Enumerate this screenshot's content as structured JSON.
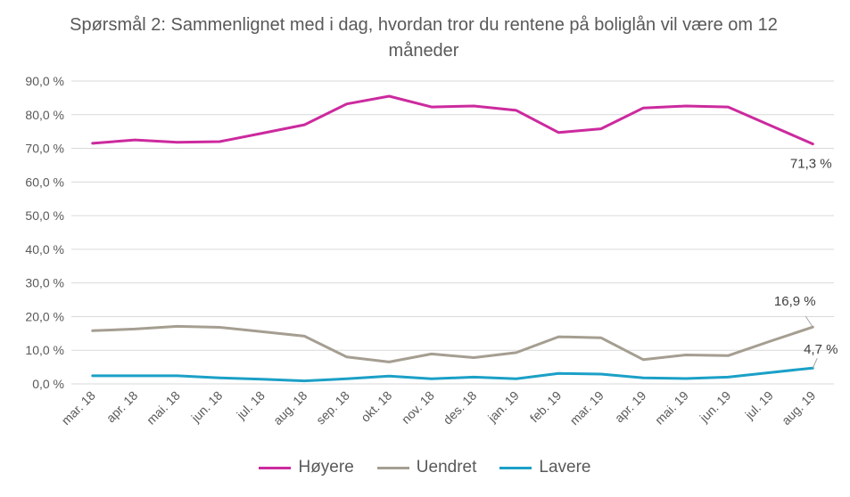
{
  "chart_data": {
    "type": "line",
    "title": "Spørsmål 2: Sammenlignet  med i dag, hvordan tror du rentene på boliglån vil være om 12 måneder",
    "xlabel": "",
    "ylabel": "",
    "ylim": [
      0,
      90
    ],
    "y_ticks": [
      "0,0 %",
      "10,0 %",
      "20,0 %",
      "30,0 %",
      "40,0 %",
      "50,0 %",
      "60,0 %",
      "70,0 %",
      "80,0 %",
      "90,0 %"
    ],
    "grid": true,
    "legend": "bottom",
    "categories": [
      "mar. 18",
      "apr. 18",
      "mai. 18",
      "jun. 18",
      "jul. 18",
      "aug. 18",
      "sep. 18",
      "okt. 18",
      "nov. 18",
      "des. 18",
      "jan. 19",
      "feb. 19",
      "mar. 19",
      "apr. 19",
      "mai. 19",
      "jun. 19",
      "jul. 19",
      "aug. 19"
    ],
    "series": [
      {
        "name": "Høyere",
        "color": "#CC2A9E",
        "values": [
          71.5,
          72.5,
          71.8,
          72.0,
          74.5,
          77.0,
          83.2,
          85.5,
          82.3,
          82.6,
          81.3,
          74.7,
          75.8,
          82.0,
          82.6,
          82.3,
          76.8,
          71.3
        ],
        "end_label": "71,3 %"
      },
      {
        "name": "Uendret",
        "color": "#A59E91",
        "values": [
          15.8,
          16.3,
          17.1,
          16.8,
          15.5,
          14.2,
          8.0,
          6.5,
          8.9,
          7.8,
          9.3,
          14.0,
          13.7,
          7.2,
          8.6,
          8.4,
          12.7,
          16.9
        ],
        "end_label": "16,9 %"
      },
      {
        "name": "Lavere",
        "color": "#1BA0C7",
        "values": [
          2.4,
          2.4,
          2.4,
          1.8,
          1.4,
          0.9,
          1.5,
          2.3,
          1.5,
          2.0,
          1.5,
          3.1,
          2.9,
          1.8,
          1.6,
          2.0,
          3.4,
          4.7
        ],
        "end_label": "4,7 %"
      }
    ]
  }
}
